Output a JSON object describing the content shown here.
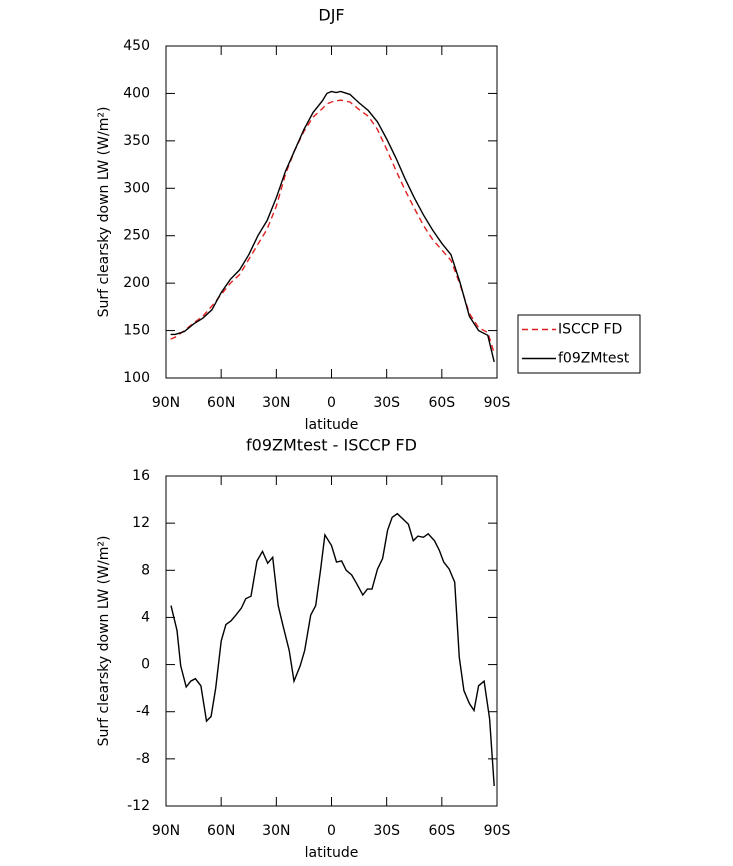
{
  "chart_data": [
    {
      "type": "line",
      "title": "DJF",
      "xlabel": "latitude",
      "ylabel": "Surf clearsky down LW (W/m²)",
      "x": [
        87.5,
        85,
        80,
        75,
        70,
        65,
        60,
        55,
        50,
        45,
        40,
        35,
        30,
        25,
        20,
        15,
        10,
        5,
        2.5,
        0,
        -2.5,
        -5,
        -10,
        -15,
        -20,
        -25,
        -30,
        -35,
        -40,
        -45,
        -50,
        -55,
        -60,
        -65,
        -70,
        -75,
        -80,
        -85,
        -88.5
      ],
      "series": [
        {
          "name": "ISCCP FD",
          "color": "#e02020",
          "linestyle": "dashed",
          "values": [
            141,
            143,
            150,
            158,
            165,
            176,
            188,
            200,
            209,
            225,
            241,
            257,
            281,
            315,
            340,
            360,
            375,
            384,
            389,
            391,
            392,
            393,
            391,
            383,
            376,
            362,
            341,
            319,
            298,
            279,
            261,
            246,
            235,
            224,
            198,
            168,
            153,
            148,
            126
          ]
        },
        {
          "name": "f09ZMtest",
          "color": "#000000",
          "linestyle": "solid",
          "values": [
            146,
            146,
            149,
            157,
            163,
            172,
            190,
            204,
            214,
            230,
            250,
            266,
            290,
            318,
            340,
            362,
            380,
            392,
            400,
            402,
            401,
            402,
            399,
            390,
            382,
            370,
            352,
            332,
            310,
            290,
            272,
            256,
            242,
            230,
            200,
            165,
            150,
            145,
            117
          ]
        }
      ],
      "xlim": [
        90,
        -90
      ],
      "xticks": [
        {
          "value": 90,
          "label": "90N"
        },
        {
          "value": 60,
          "label": "60N"
        },
        {
          "value": 30,
          "label": "30N"
        },
        0,
        {
          "value": -30,
          "label": "30S"
        },
        {
          "value": -60,
          "label": "60S"
        },
        {
          "value": -90,
          "label": "90S"
        }
      ],
      "ylim": [
        100,
        450
      ],
      "yticks": [
        100,
        150,
        200,
        250,
        300,
        350,
        400,
        450
      ],
      "legend": "right"
    },
    {
      "type": "line",
      "title": "f09ZMtest - ISCCP FD",
      "xlabel": "latitude",
      "ylabel": "Surf clearsky down LW (W/m²)",
      "x": [
        87.3,
        84,
        82,
        79,
        76.5,
        74,
        71,
        68,
        65.5,
        63,
        60,
        57.4,
        54.7,
        52,
        49,
        46.6,
        43.8,
        40.5,
        37.5,
        34.7,
        32,
        29,
        26.4,
        23,
        20.4,
        17,
        14.6,
        11.3,
        8.6,
        6,
        3.6,
        0,
        -2.7,
        -5.5,
        -8,
        -11,
        -13.6,
        -17,
        -19.5,
        -22,
        -25,
        -27.8,
        -30.5,
        -33,
        -35.8,
        -38.5,
        -41.8,
        -44.5,
        -47,
        -50,
        -52.6,
        -56,
        -58.6,
        -61,
        -64,
        -67,
        -69.5,
        -72,
        -75,
        -77.5,
        -80,
        -83,
        -86,
        -88.5
      ],
      "series": [
        {
          "name": "f09ZMtest - ISCCP FD",
          "color": "#000000",
          "linestyle": "solid",
          "values": [
            5.0,
            2.9,
            -0.1,
            -1.9,
            -1.4,
            -1.2,
            -1.8,
            -4.8,
            -4.4,
            -2.0,
            2.0,
            3.4,
            3.7,
            4.2,
            4.8,
            5.6,
            5.8,
            8.8,
            9.6,
            8.6,
            9.1,
            5.0,
            3.3,
            1.2,
            -1.4,
            -0.1,
            1.2,
            4.2,
            5.0,
            8.0,
            11.0,
            10.1,
            8.7,
            8.8,
            8.0,
            7.6,
            6.9,
            5.9,
            6.4,
            6.4,
            8.1,
            9.0,
            11.4,
            12.5,
            12.8,
            12.4,
            11.9,
            10.5,
            10.9,
            10.8,
            11.1,
            10.5,
            9.7,
            8.7,
            8.1,
            7.0,
            0.6,
            -2.2,
            -3.3,
            -3.9,
            -1.8,
            -1.4,
            -4.6,
            -10.3
          ]
        }
      ],
      "xlim": [
        90,
        -90
      ],
      "xticks": [
        {
          "value": 90,
          "label": "90N"
        },
        {
          "value": 60,
          "label": "60N"
        },
        {
          "value": 30,
          "label": "30N"
        },
        0,
        {
          "value": -30,
          "label": "30S"
        },
        {
          "value": -60,
          "label": "60S"
        },
        {
          "value": -90,
          "label": "90S"
        }
      ],
      "ylim": [
        -12,
        16
      ],
      "yticks": [
        -12,
        -8,
        -4,
        0,
        4,
        8,
        12,
        16
      ]
    }
  ]
}
